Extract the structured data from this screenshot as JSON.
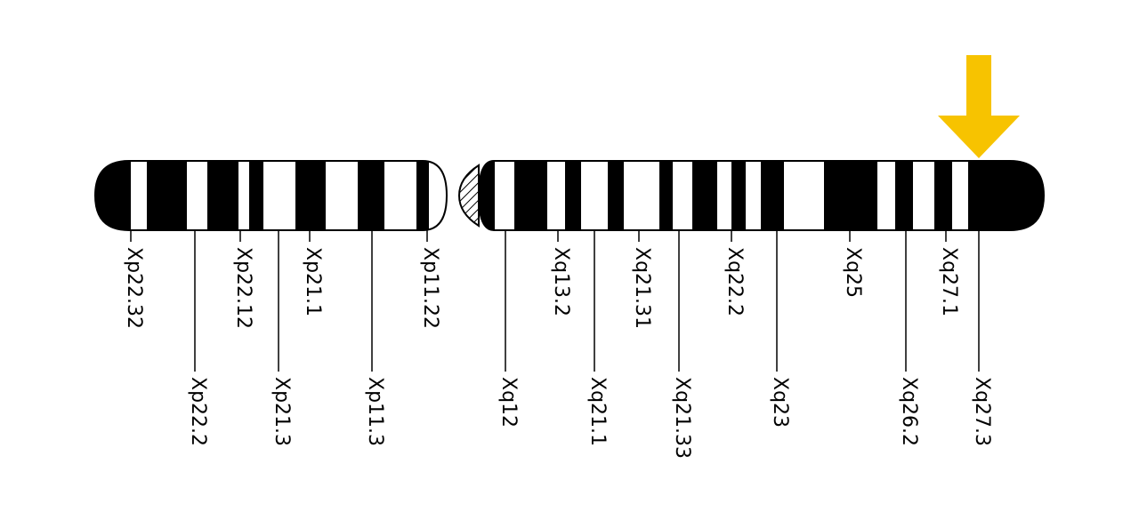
{
  "chromosome": {
    "colors": {
      "dark_band": "#000000",
      "light_band": "#ffffff",
      "outline": "#000000",
      "marker_arrow": "#f7c300"
    },
    "marker_icon": "down-arrow-icon",
    "marked_band": "Xq27.3",
    "p_arm_bands": [
      {
        "stain": "dark"
      },
      {
        "stain": "light"
      },
      {
        "stain": "dark"
      },
      {
        "stain": "light"
      },
      {
        "stain": "dark"
      },
      {
        "stain": "light"
      },
      {
        "stain": "dark"
      },
      {
        "stain": "light"
      },
      {
        "stain": "dark"
      },
      {
        "stain": "light"
      },
      {
        "stain": "dark"
      },
      {
        "stain": "light"
      },
      {
        "stain": "dark"
      },
      {
        "stain": "light"
      }
    ],
    "centromere": {
      "stain": "hatched"
    },
    "q_arm_bands": [
      {
        "stain": "dark"
      },
      {
        "stain": "light"
      },
      {
        "stain": "dark"
      },
      {
        "stain": "light"
      },
      {
        "stain": "dark"
      },
      {
        "stain": "light"
      },
      {
        "stain": "dark"
      },
      {
        "stain": "light"
      },
      {
        "stain": "dark"
      },
      {
        "stain": "light"
      },
      {
        "stain": "dark"
      },
      {
        "stain": "light"
      },
      {
        "stain": "dark"
      },
      {
        "stain": "light"
      },
      {
        "stain": "dark"
      },
      {
        "stain": "light"
      },
      {
        "stain": "dark"
      },
      {
        "stain": "light"
      },
      {
        "stain": "dark"
      },
      {
        "stain": "light"
      },
      {
        "stain": "dark"
      },
      {
        "stain": "light"
      },
      {
        "stain": "dark"
      }
    ],
    "labels": [
      {
        "text": "Xp22.32"
      },
      {
        "text": "Xp22.2"
      },
      {
        "text": "Xp22.12"
      },
      {
        "text": "Xp21.3"
      },
      {
        "text": "Xp21.1"
      },
      {
        "text": "Xp11.3"
      },
      {
        "text": "Xp11.22"
      },
      {
        "text": "Xq12"
      },
      {
        "text": "Xq13.2"
      },
      {
        "text": "Xq21.1"
      },
      {
        "text": "Xq21.31"
      },
      {
        "text": "Xq21.33"
      },
      {
        "text": "Xq22.2"
      },
      {
        "text": "Xq23"
      },
      {
        "text": "Xq25"
      },
      {
        "text": "Xq26.2"
      },
      {
        "text": "Xq27.1"
      },
      {
        "text": "Xq27.3"
      }
    ]
  }
}
